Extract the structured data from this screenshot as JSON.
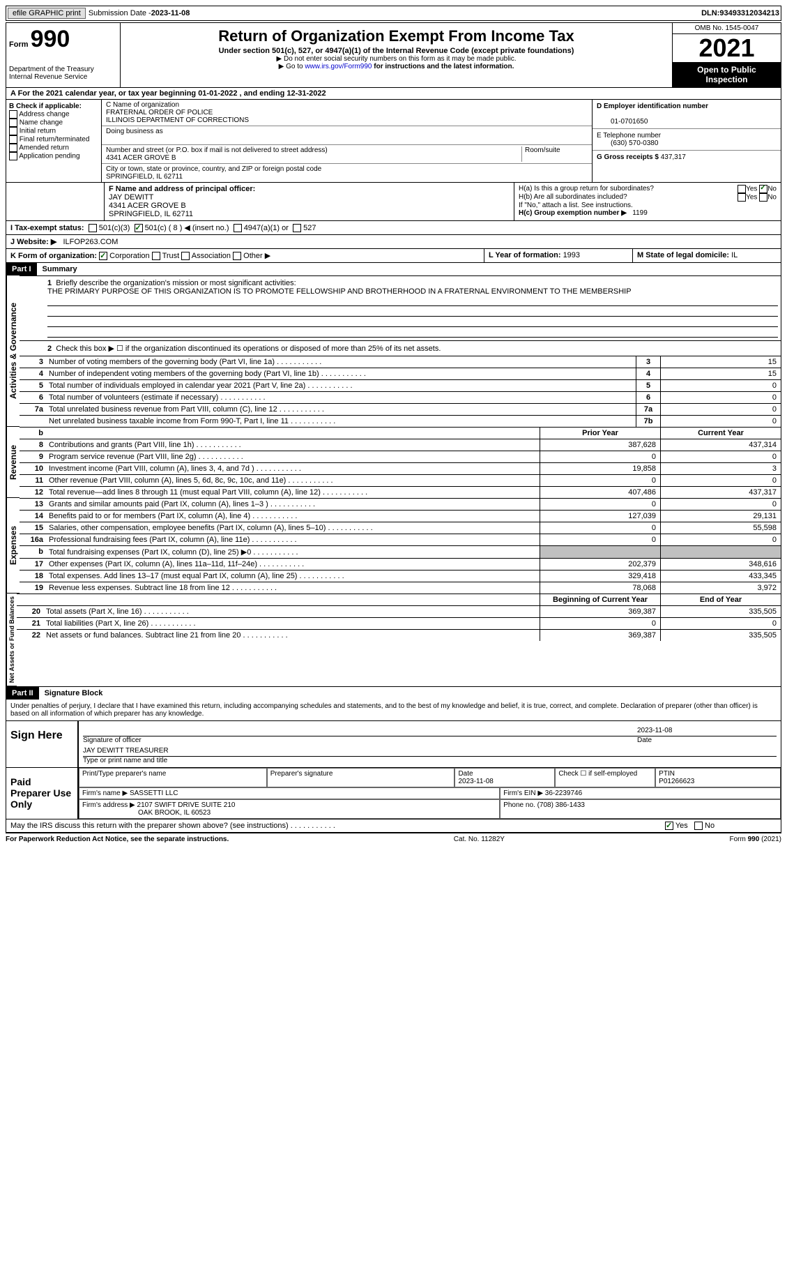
{
  "topbar": {
    "efile": "efile GRAPHIC print",
    "submission_label": "Submission Date - ",
    "submission_date": "2023-11-08",
    "dln_label": "DLN: ",
    "dln": "93493312034213"
  },
  "header": {
    "form_word": "Form",
    "form_num": "990",
    "dept": "Department of the Treasury",
    "irs": "Internal Revenue Service",
    "title": "Return of Organization Exempt From Income Tax",
    "subtitle": "Under section 501(c), 527, or 4947(a)(1) of the Internal Revenue Code (except private foundations)",
    "note1": "Do not enter social security numbers on this form as it may be made public.",
    "note2_pre": "Go to ",
    "note2_link": "www.irs.gov/Form990",
    "note2_post": " for instructions and the latest information.",
    "omb": "OMB No. 1545-0047",
    "year": "2021",
    "open": "Open to Public Inspection"
  },
  "row_a": {
    "text": "A For the 2021 calendar year, or tax year beginning 01-01-2022    , and ending 12-31-2022"
  },
  "col_b": {
    "label": "B Check if applicable:",
    "items": [
      "Address change",
      "Name change",
      "Initial return",
      "Final return/terminated",
      "Amended return",
      "Application pending"
    ]
  },
  "col_c": {
    "name_label": "C Name of organization",
    "name1": "FRATERNAL ORDER OF POLICE",
    "name2": "ILLINOIS DEPARTMENT OF CORRECTIONS",
    "dba_label": "Doing business as",
    "addr_label": "Number and street (or P.O. box if mail is not delivered to street address)",
    "room_label": "Room/suite",
    "addr": "4341 ACER GROVE B",
    "city_label": "City or town, state or province, country, and ZIP or foreign postal code",
    "city": "SPRINGFIELD, IL  62711"
  },
  "col_d": {
    "ein_label": "D Employer identification number",
    "ein": "01-0701650",
    "phone_label": "E Telephone number",
    "phone": "(630) 570-0380",
    "gross_label": "G Gross receipts $ ",
    "gross": "437,317"
  },
  "row_f": {
    "label": "F  Name and address of principal officer:",
    "name": "JAY DEWITT",
    "addr1": "4341 ACER GROVE B",
    "addr2": "SPRINGFIELD, IL  62711"
  },
  "row_h": {
    "ha": "H(a)  Is this a group return for subordinates?",
    "hb": "H(b)  Are all subordinates included?",
    "hb_note": "If \"No,\" attach a list. See instructions.",
    "hc": "H(c)  Group exemption number ▶",
    "hc_val": "1199",
    "yes": "Yes",
    "no": "No"
  },
  "row_i": {
    "label": "I  Tax-exempt status:",
    "c3": "501(c)(3)",
    "c_open": "501(c) ( 8 ) ◀ (insert no.)",
    "a1": "4947(a)(1) or",
    "s527": "527"
  },
  "row_j": {
    "label": "J  Website: ▶",
    "val": "ILFOP263.COM"
  },
  "row_k": {
    "label": "K Form of organization:",
    "corp": "Corporation",
    "trust": "Trust",
    "assoc": "Association",
    "other": "Other ▶"
  },
  "row_l": {
    "label": "L Year of formation: ",
    "val": "1993"
  },
  "row_m": {
    "label": "M State of legal domicile: ",
    "val": "IL"
  },
  "part1": {
    "header": "Part I",
    "title": "Summary",
    "line1_label": "Briefly describe the organization's mission or most significant activities:",
    "line1_val": "THE PRIMARY PURPOSE OF THIS ORGANIZATION IS TO PROMOTE FELLOWSHIP AND BROTHERHOOD IN A FRATERNAL ENVIRONMENT TO THE MEMBERSHIP",
    "line2": "Check this box ▶ ☐  if the organization discontinued its operations or disposed of more than 25% of its net assets.",
    "vtab_ag": "Activities & Governance",
    "vtab_rev": "Revenue",
    "vtab_exp": "Expenses",
    "vtab_net": "Net Assets or Fund Balances",
    "prior_year": "Prior Year",
    "current_year": "Current Year",
    "begin_year": "Beginning of Current Year",
    "end_year": "End of Year",
    "rows_ag": [
      {
        "n": "3",
        "d": "Number of voting members of the governing body (Part VI, line 1a)",
        "b": "3",
        "v": "15"
      },
      {
        "n": "4",
        "d": "Number of independent voting members of the governing body (Part VI, line 1b)",
        "b": "4",
        "v": "15"
      },
      {
        "n": "5",
        "d": "Total number of individuals employed in calendar year 2021 (Part V, line 2a)",
        "b": "5",
        "v": "0"
      },
      {
        "n": "6",
        "d": "Total number of volunteers (estimate if necessary)",
        "b": "6",
        "v": "0"
      },
      {
        "n": "7a",
        "d": "Total unrelated business revenue from Part VIII, column (C), line 12",
        "b": "7a",
        "v": "0"
      },
      {
        "n": " ",
        "d": "Net unrelated business taxable income from Form 990-T, Part I, line 11",
        "b": "7b",
        "v": "0"
      }
    ],
    "rows_rev": [
      {
        "n": "8",
        "d": "Contributions and grants (Part VIII, line 1h)",
        "p": "387,628",
        "c": "437,314"
      },
      {
        "n": "9",
        "d": "Program service revenue (Part VIII, line 2g)",
        "p": "0",
        "c": "0"
      },
      {
        "n": "10",
        "d": "Investment income (Part VIII, column (A), lines 3, 4, and 7d )",
        "p": "19,858",
        "c": "3"
      },
      {
        "n": "11",
        "d": "Other revenue (Part VIII, column (A), lines 5, 6d, 8c, 9c, 10c, and 11e)",
        "p": "0",
        "c": "0"
      },
      {
        "n": "12",
        "d": "Total revenue—add lines 8 through 11 (must equal Part VIII, column (A), line 12)",
        "p": "407,486",
        "c": "437,317"
      }
    ],
    "rows_exp": [
      {
        "n": "13",
        "d": "Grants and similar amounts paid (Part IX, column (A), lines 1–3 )",
        "p": "0",
        "c": "0"
      },
      {
        "n": "14",
        "d": "Benefits paid to or for members (Part IX, column (A), line 4)",
        "p": "127,039",
        "c": "29,131"
      },
      {
        "n": "15",
        "d": "Salaries, other compensation, employee benefits (Part IX, column (A), lines 5–10)",
        "p": "0",
        "c": "55,598"
      },
      {
        "n": "16a",
        "d": "Professional fundraising fees (Part IX, column (A), line 11e)",
        "p": "0",
        "c": "0"
      },
      {
        "n": "b",
        "d": "Total fundraising expenses (Part IX, column (D), line 25) ▶0",
        "p": "shaded",
        "c": "shaded"
      },
      {
        "n": "17",
        "d": "Other expenses (Part IX, column (A), lines 11a–11d, 11f–24e)",
        "p": "202,379",
        "c": "348,616"
      },
      {
        "n": "18",
        "d": "Total expenses. Add lines 13–17 (must equal Part IX, column (A), line 25)",
        "p": "329,418",
        "c": "433,345"
      },
      {
        "n": "19",
        "d": "Revenue less expenses. Subtract line 18 from line 12",
        "p": "78,068",
        "c": "3,972"
      }
    ],
    "rows_net": [
      {
        "n": "20",
        "d": "Total assets (Part X, line 16)",
        "p": "369,387",
        "c": "335,505"
      },
      {
        "n": "21",
        "d": "Total liabilities (Part X, line 26)",
        "p": "0",
        "c": "0"
      },
      {
        "n": "22",
        "d": "Net assets or fund balances. Subtract line 21 from line 20",
        "p": "369,387",
        "c": "335,505"
      }
    ]
  },
  "part2": {
    "header": "Part II",
    "title": "Signature Block",
    "declaration": "Under penalties of perjury, I declare that I have examined this return, including accompanying schedules and statements, and to the best of my knowledge and belief, it is true, correct, and complete. Declaration of preparer (other than officer) is based on all information of which preparer has any knowledge.",
    "sign_here": "Sign Here",
    "sig_officer": "Signature of officer",
    "sig_date": "2023-11-08",
    "date_label": "Date",
    "name_title": "JAY DEWITT TREASURER",
    "type_label": "Type or print name and title",
    "paid_prep": "Paid Preparer Use Only",
    "prep_name_label": "Print/Type preparer's name",
    "prep_sig_label": "Preparer's signature",
    "prep_date": "2023-11-08",
    "check_self": "Check ☐ if self-employed",
    "ptin_label": "PTIN",
    "ptin": "P01266623",
    "firm_name_label": "Firm's name    ▶ ",
    "firm_name": "SASSETTI LLC",
    "firm_ein_label": "Firm's EIN ▶ ",
    "firm_ein": "36-2239746",
    "firm_addr_label": "Firm's address ▶ ",
    "firm_addr1": "2107 SWIFT DRIVE SUITE 210",
    "firm_addr2": "OAK BROOK, IL  60523",
    "firm_phone_label": "Phone no. ",
    "firm_phone": "(708) 386-1433",
    "may_irs": "May the IRS discuss this return with the preparer shown above? (see instructions)"
  },
  "footer": {
    "left": "For Paperwork Reduction Act Notice, see the separate instructions.",
    "mid": "Cat. No. 11282Y",
    "right": "Form 990 (2021)"
  }
}
